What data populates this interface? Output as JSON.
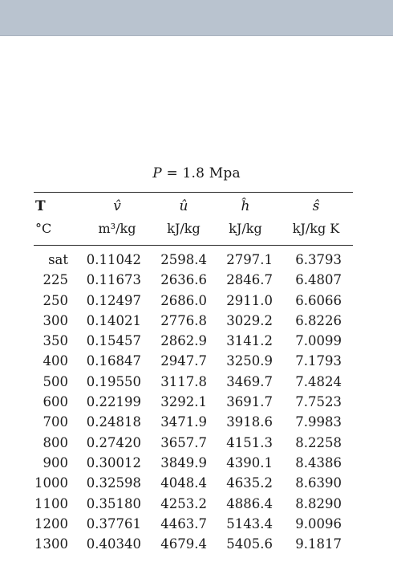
{
  "caption": {
    "var": "P",
    "rest": " = 1.8 Mpa"
  },
  "headers": [
    {
      "symbol": "T",
      "unit": "°C"
    },
    {
      "symbol": "v̂",
      "unit": "m³/kg"
    },
    {
      "symbol": "û",
      "unit": "kJ/kg"
    },
    {
      "symbol": "ĥ",
      "unit": "kJ/kg"
    },
    {
      "symbol": "ŝ",
      "unit": "kJ/kg K"
    }
  ],
  "rows": [
    [
      "sat",
      "0.11042",
      "2598.4",
      "2797.1",
      "6.3793"
    ],
    [
      "225",
      "0.11673",
      "2636.6",
      "2846.7",
      "6.4807"
    ],
    [
      "250",
      "0.12497",
      "2686.0",
      "2911.0",
      "6.6066"
    ],
    [
      "300",
      "0.14021",
      "2776.8",
      "3029.2",
      "6.8226"
    ],
    [
      "350",
      "0.15457",
      "2862.9",
      "3141.2",
      "7.0099"
    ],
    [
      "400",
      "0.16847",
      "2947.7",
      "3250.9",
      "7.1793"
    ],
    [
      "500",
      "0.19550",
      "3117.8",
      "3469.7",
      "7.4824"
    ],
    [
      "600",
      "0.22199",
      "3292.1",
      "3691.7",
      "7.7523"
    ],
    [
      "700",
      "0.24818",
      "3471.9",
      "3918.6",
      "7.9983"
    ],
    [
      "800",
      "0.27420",
      "3657.7",
      "4151.3",
      "8.2258"
    ],
    [
      "900",
      "0.30012",
      "3849.9",
      "4390.1",
      "8.4386"
    ],
    [
      "1000",
      "0.32598",
      "4048.4",
      "4635.2",
      "8.6390"
    ],
    [
      "1100",
      "0.35180",
      "4253.2",
      "4886.4",
      "8.8290"
    ],
    [
      "1200",
      "0.37761",
      "4463.7",
      "5143.4",
      "9.0096"
    ],
    [
      "1300",
      "0.40340",
      "4679.4",
      "5405.6",
      "9.1817"
    ]
  ]
}
